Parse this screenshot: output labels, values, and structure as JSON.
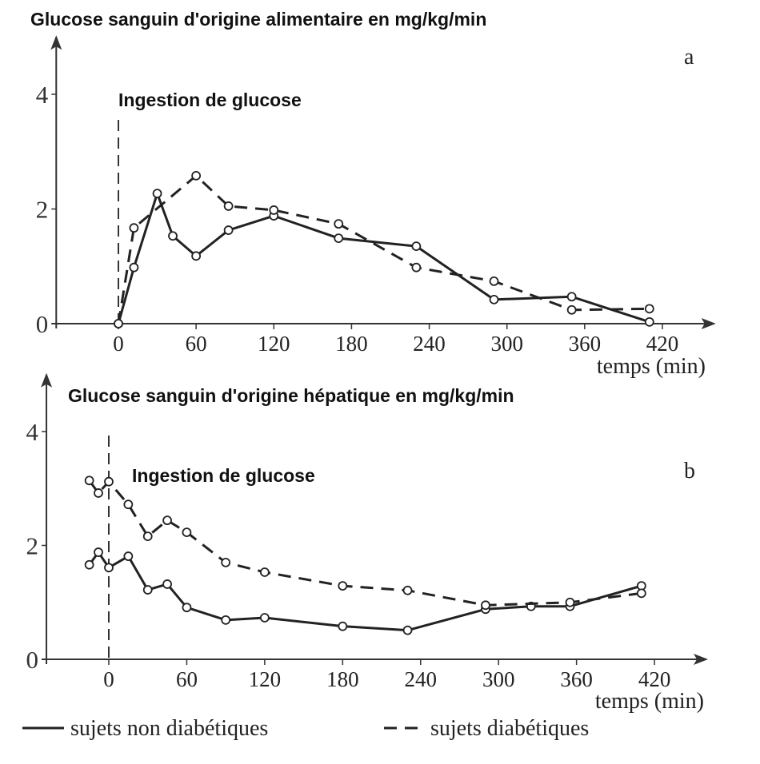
{
  "chart_data": [
    {
      "type": "line",
      "title": "Glucose sanguin d'origine alimentaire en mg/kg/min",
      "panel": "a",
      "annotation": {
        "text": "Ingestion de glucose",
        "x": 0
      },
      "x_label": "temps (min)",
      "xlim": [
        -48,
        460
      ],
      "xticks": [
        0,
        60,
        120,
        180,
        240,
        300,
        360,
        420
      ],
      "ylim": [
        0,
        5
      ],
      "yticks": [
        0,
        2,
        4
      ],
      "grid": false,
      "series": [
        {
          "name": "sujets non diabétiques",
          "color": "#222222",
          "line_style": "solid",
          "x": [
            0,
            12,
            30,
            42,
            60,
            85,
            120,
            170,
            230,
            290,
            350,
            410
          ],
          "values": [
            0,
            0.98,
            2.27,
            1.53,
            1.18,
            1.63,
            1.88,
            1.49,
            1.35,
            0.42,
            0.47,
            0.03
          ]
        },
        {
          "name": "sujets diabétiques",
          "color": "#222222",
          "line_style": "dashed",
          "x": [
            0,
            12,
            60,
            85,
            120,
            170,
            230,
            290,
            350,
            410
          ],
          "values": [
            0,
            1.67,
            2.58,
            2.05,
            1.98,
            1.74,
            0.98,
            0.74,
            0.24,
            0.26
          ]
        }
      ]
    },
    {
      "type": "line",
      "title": "Glucose sanguin d'origine hépatique en mg/kg/min",
      "panel": "b",
      "annotation": {
        "text": "Ingestion de glucose",
        "x": 0
      },
      "x_label": "temps (min)",
      "xlim": [
        -48,
        460
      ],
      "xticks": [
        0,
        60,
        120,
        180,
        240,
        300,
        360,
        420
      ],
      "ylim": [
        0,
        5
      ],
      "yticks": [
        0,
        2,
        4
      ],
      "grid": false,
      "series": [
        {
          "color": "#222222",
          "line_style": "solid",
          "x": [
            -15,
            -8,
            0,
            15,
            30,
            45,
            60,
            90,
            120,
            180,
            230,
            290,
            325,
            355,
            410
          ],
          "values": [
            1.66,
            1.88,
            1.61,
            1.81,
            1.22,
            1.32,
            0.91,
            0.69,
            0.73,
            0.58,
            0.51,
            0.88,
            0.93,
            0.93,
            1.29
          ]
        },
        {
          "color": "#222222",
          "line_style": "dashed",
          "x": [
            -15,
            -8,
            0,
            15,
            30,
            45,
            60,
            90,
            120,
            180,
            230,
            290,
            355,
            410
          ],
          "values": [
            3.14,
            2.92,
            3.12,
            2.72,
            2.16,
            2.44,
            2.23,
            1.7,
            1.53,
            1.29,
            1.21,
            0.95,
            1.0,
            1.16
          ]
        }
      ]
    }
  ]
}
